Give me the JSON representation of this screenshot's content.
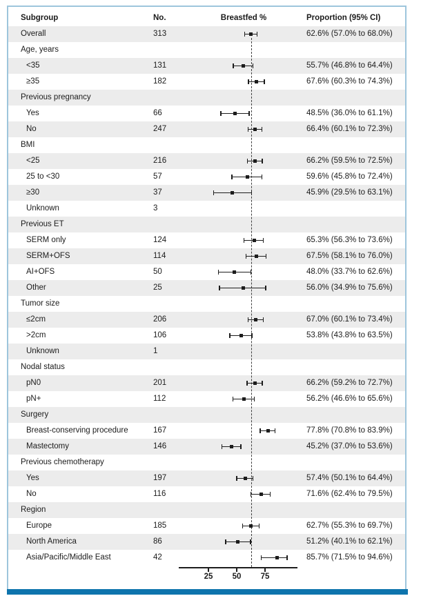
{
  "figure": {
    "header": {
      "subgroup": "Subgroup",
      "no": "No.",
      "breastfed": "Breastfed %",
      "proportion": "Proportion (95% CI)"
    }
  },
  "colors": {
    "frame_border": "#9dc5dc",
    "bottom_bar": "#0e74ad",
    "row_stripe": "#ececec",
    "marker": "#1c1c1c",
    "reference_line": "#3c3c3c"
  },
  "chart_data": {
    "type": "forest",
    "title": "",
    "xlabel": "Breastfed %",
    "xlim": [
      0,
      100
    ],
    "x_ticks": [
      25,
      50,
      75
    ],
    "reference_line_value": 62.6,
    "columns": [
      "Subgroup",
      "No.",
      "Breastfed %",
      "Proportion (95% CI)"
    ],
    "rows": [
      {
        "kind": "data",
        "label": "Overall",
        "indent": false,
        "n": "313",
        "est": 62.6,
        "lo": 57.0,
        "hi": 68.0,
        "ci_text": "62.6% (57.0% to 68.0%)"
      },
      {
        "kind": "section",
        "label": "Age, years"
      },
      {
        "kind": "data",
        "label": "<35",
        "indent": true,
        "n": "131",
        "est": 55.7,
        "lo": 46.8,
        "hi": 64.4,
        "ci_text": "55.7% (46.8% to 64.4%)"
      },
      {
        "kind": "data",
        "label": "≥35",
        "indent": true,
        "n": "182",
        "est": 67.6,
        "lo": 60.3,
        "hi": 74.3,
        "ci_text": "67.6% (60.3% to 74.3%)"
      },
      {
        "kind": "section",
        "label": "Previous pregnancy"
      },
      {
        "kind": "data",
        "label": "Yes",
        "indent": true,
        "n": "66",
        "est": 48.5,
        "lo": 36.0,
        "hi": 61.1,
        "ci_text": "48.5% (36.0% to 61.1%)"
      },
      {
        "kind": "data",
        "label": "No",
        "indent": true,
        "n": "247",
        "est": 66.4,
        "lo": 60.1,
        "hi": 72.3,
        "ci_text": "66.4% (60.1% to 72.3%)"
      },
      {
        "kind": "section",
        "label": "BMI"
      },
      {
        "kind": "data",
        "label": "<25",
        "indent": true,
        "n": "216",
        "est": 66.2,
        "lo": 59.5,
        "hi": 72.5,
        "ci_text": "66.2% (59.5% to 72.5%)"
      },
      {
        "kind": "data",
        "label": "25 to <30",
        "indent": true,
        "n": "57",
        "est": 59.6,
        "lo": 45.8,
        "hi": 72.4,
        "ci_text": "59.6% (45.8% to 72.4%)"
      },
      {
        "kind": "data",
        "label": "≥30",
        "indent": true,
        "n": "37",
        "est": 45.9,
        "lo": 29.5,
        "hi": 63.1,
        "ci_text": "45.9% (29.5% to 63.1%)"
      },
      {
        "kind": "data",
        "label": "Unknown",
        "indent": true,
        "n": "3",
        "est": null,
        "lo": null,
        "hi": null,
        "ci_text": ""
      },
      {
        "kind": "section",
        "label": "Previous ET"
      },
      {
        "kind": "data",
        "label": "SERM only",
        "indent": true,
        "n": "124",
        "est": 65.3,
        "lo": 56.3,
        "hi": 73.6,
        "ci_text": "65.3% (56.3% to 73.6%)"
      },
      {
        "kind": "data",
        "label": "SERM+OFS",
        "indent": true,
        "n": "114",
        "est": 67.5,
        "lo": 58.1,
        "hi": 76.0,
        "ci_text": "67.5% (58.1% to 76.0%)"
      },
      {
        "kind": "data",
        "label": "AI+OFS",
        "indent": true,
        "n": "50",
        "est": 48.0,
        "lo": 33.7,
        "hi": 62.6,
        "ci_text": "48.0% (33.7% to 62.6%)"
      },
      {
        "kind": "data",
        "label": "Other",
        "indent": true,
        "n": "25",
        "est": 56.0,
        "lo": 34.9,
        "hi": 75.6,
        "ci_text": "56.0% (34.9% to 75.6%)"
      },
      {
        "kind": "section",
        "label": "Tumor size"
      },
      {
        "kind": "data",
        "label": "≤2cm",
        "indent": true,
        "n": "206",
        "est": 67.0,
        "lo": 60.1,
        "hi": 73.4,
        "ci_text": "67.0% (60.1% to 73.4%)"
      },
      {
        "kind": "data",
        "label": ">2cm",
        "indent": true,
        "n": "106",
        "est": 53.8,
        "lo": 43.8,
        "hi": 63.5,
        "ci_text": "53.8% (43.8% to 63.5%)"
      },
      {
        "kind": "data",
        "label": "Unknown",
        "indent": true,
        "n": "1",
        "est": null,
        "lo": null,
        "hi": null,
        "ci_text": ""
      },
      {
        "kind": "section",
        "label": "Nodal status"
      },
      {
        "kind": "data",
        "label": "pN0",
        "indent": true,
        "n": "201",
        "est": 66.2,
        "lo": 59.2,
        "hi": 72.7,
        "ci_text": "66.2% (59.2% to 72.7%)"
      },
      {
        "kind": "data",
        "label": "pN+",
        "indent": true,
        "n": "112",
        "est": 56.2,
        "lo": 46.6,
        "hi": 65.6,
        "ci_text": "56.2% (46.6% to 65.6%)"
      },
      {
        "kind": "section",
        "label": "Surgery"
      },
      {
        "kind": "data",
        "label": "Breast-conserving procedure",
        "indent": true,
        "n": "167",
        "est": 77.8,
        "lo": 70.8,
        "hi": 83.9,
        "ci_text": "77.8% (70.8% to 83.9%)"
      },
      {
        "kind": "data",
        "label": "Mastectomy",
        "indent": true,
        "n": "146",
        "est": 45.2,
        "lo": 37.0,
        "hi": 53.6,
        "ci_text": "45.2% (37.0% to 53.6%)"
      },
      {
        "kind": "section",
        "label": "Previous chemotherapy"
      },
      {
        "kind": "data",
        "label": "Yes",
        "indent": true,
        "n": "197",
        "est": 57.4,
        "lo": 50.1,
        "hi": 64.4,
        "ci_text": "57.4% (50.1% to 64.4%)"
      },
      {
        "kind": "data",
        "label": "No",
        "indent": true,
        "n": "116",
        "est": 71.6,
        "lo": 62.4,
        "hi": 79.5,
        "ci_text": "71.6% (62.4% to 79.5%)"
      },
      {
        "kind": "section",
        "label": "Region"
      },
      {
        "kind": "data",
        "label": "Europe",
        "indent": true,
        "n": "185",
        "est": 62.7,
        "lo": 55.3,
        "hi": 69.7,
        "ci_text": "62.7% (55.3% to 69.7%)"
      },
      {
        "kind": "data",
        "label": "North America",
        "indent": true,
        "n": "86",
        "est": 51.2,
        "lo": 40.1,
        "hi": 62.1,
        "ci_text": "51.2% (40.1% to 62.1%)"
      },
      {
        "kind": "data",
        "label": "Asia/Pacific/Middle East",
        "indent": true,
        "n": "42",
        "est": 85.7,
        "lo": 71.5,
        "hi": 94.6,
        "ci_text": "85.7% (71.5% to 94.6%)"
      }
    ]
  }
}
